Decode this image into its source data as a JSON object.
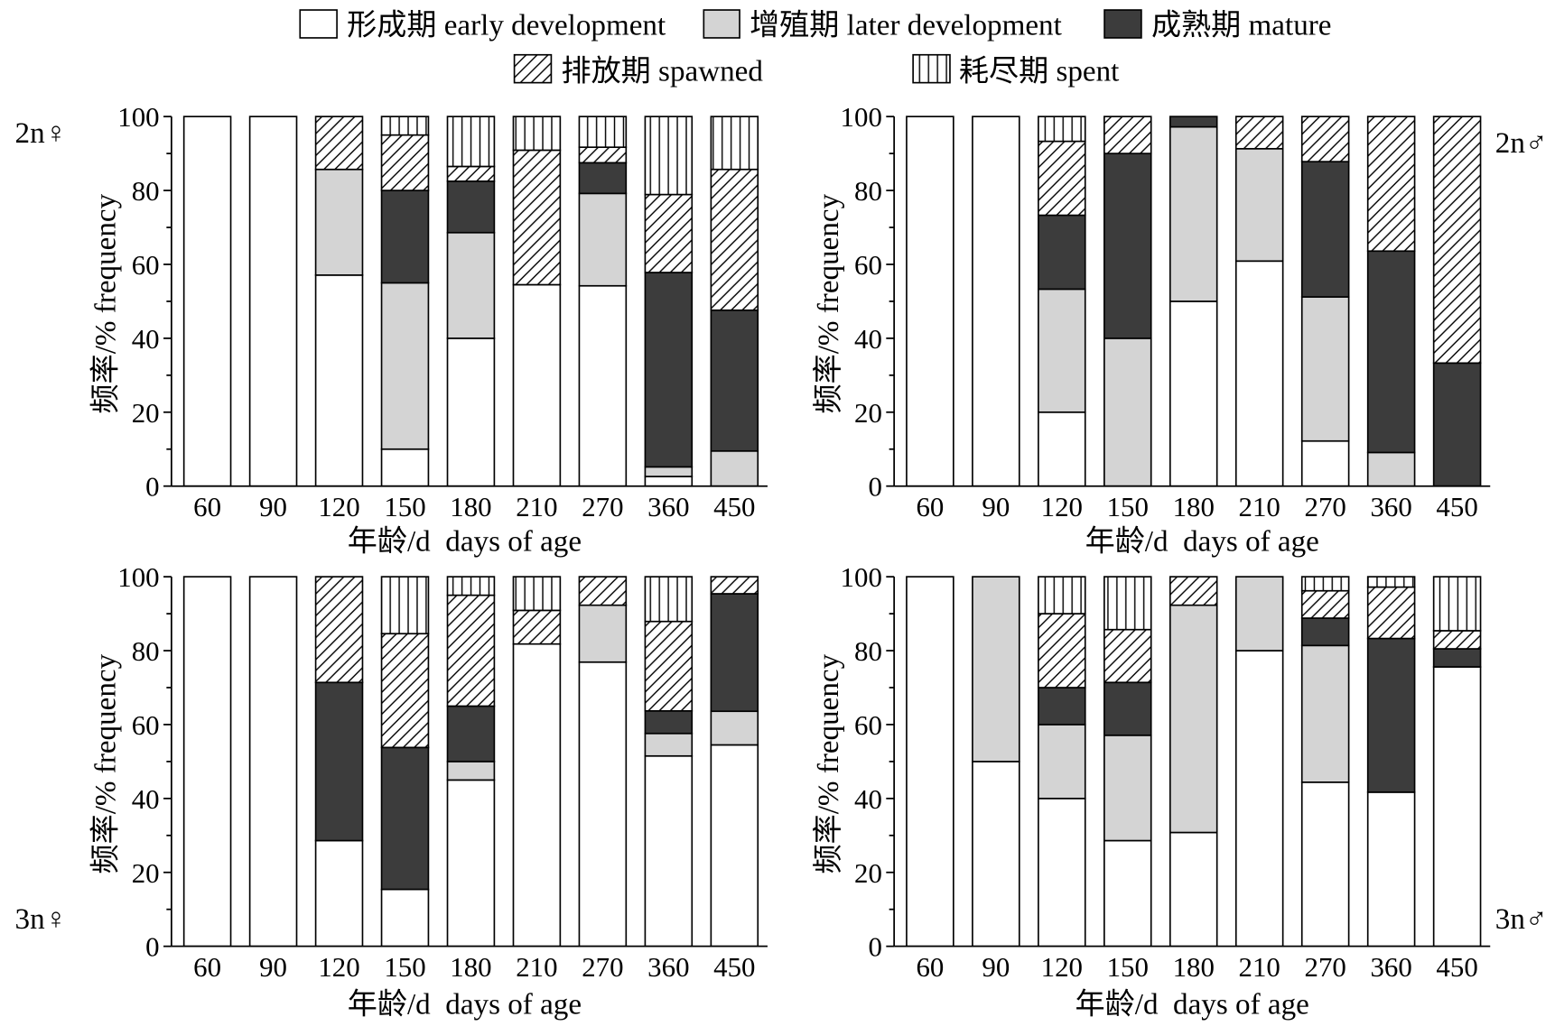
{
  "legend": {
    "position": "top",
    "items": [
      {
        "name": "形成期 early development",
        "fill": "#ffffff"
      },
      {
        "name": "增殖期 later development",
        "fill": "#d4d4d4"
      },
      {
        "name": "成熟期 mature",
        "fill": "#3c3c3c"
      },
      {
        "name": "排放期 spawned",
        "fill": "#ffffff",
        "pattern": "diagonal-hatch"
      },
      {
        "name": "耗尽期 spent",
        "fill": "#ffffff",
        "pattern": "vertical-lines"
      }
    ]
  },
  "chart_data": [
    {
      "type": "bar",
      "stacked": true,
      "grid": false,
      "panel_label": "2n♀",
      "xlabel": "年龄/d  days of age",
      "ylabel": "频率/% frequency",
      "ylim": [
        0,
        100
      ],
      "yticks": [
        0,
        20,
        40,
        60,
        80,
        100
      ],
      "categories": [
        "60",
        "90",
        "120",
        "150",
        "180",
        "210",
        "270",
        "360",
        "450"
      ],
      "series": [
        {
          "values": [
            100,
            100,
            57.1,
            10,
            40,
            54.5,
            54.2,
            2.6,
            0
          ]
        },
        {
          "values": [
            0,
            0,
            28.6,
            45,
            28.6,
            0,
            25,
            2.6,
            9.5
          ]
        },
        {
          "values": [
            0,
            0,
            0,
            25,
            13.9,
            0,
            8.3,
            52.6,
            38.1
          ]
        },
        {
          "values": [
            0,
            0,
            14.3,
            15,
            4.0,
            36.4,
            4.2,
            21.1,
            38.1
          ]
        },
        {
          "values": [
            0,
            0,
            0,
            5,
            13.5,
            9.1,
            8.3,
            21.1,
            14.3
          ]
        }
      ]
    },
    {
      "type": "bar",
      "stacked": true,
      "grid": false,
      "panel_label": "2n♂",
      "xlabel": "年龄/d  days of age",
      "ylabel": "频率/% frequency",
      "ylim": [
        0,
        100
      ],
      "yticks": [
        0,
        20,
        40,
        60,
        80,
        100
      ],
      "categories": [
        "60",
        "90",
        "120",
        "150",
        "180",
        "210",
        "270",
        "360",
        "450"
      ],
      "series": [
        {
          "values": [
            100,
            100,
            20,
            0,
            50,
            60.9,
            12.2,
            0,
            0
          ]
        },
        {
          "values": [
            0,
            0,
            33.3,
            40,
            47.2,
            30.4,
            39.0,
            9.1,
            0
          ]
        },
        {
          "values": [
            0,
            0,
            20,
            50,
            2.8,
            0,
            36.6,
            54.5,
            33.3
          ]
        },
        {
          "values": [
            0,
            0,
            20,
            10,
            0,
            8.7,
            12.2,
            36.4,
            66.7
          ]
        },
        {
          "values": [
            0,
            0,
            6.7,
            0,
            0,
            0,
            0,
            0,
            0
          ]
        }
      ]
    },
    {
      "type": "bar",
      "stacked": true,
      "grid": false,
      "panel_label": "3n♀",
      "xlabel": "年龄/d  days of age",
      "ylabel": "频率/% frequency",
      "ylim": [
        0,
        100
      ],
      "yticks": [
        0,
        20,
        40,
        60,
        80,
        100
      ],
      "categories": [
        "60",
        "90",
        "120",
        "150",
        "180",
        "210",
        "270",
        "360",
        "450"
      ],
      "series": [
        {
          "values": [
            100,
            100,
            28.6,
            15.4,
            45,
            81.8,
            76.9,
            51.5,
            54.5
          ]
        },
        {
          "values": [
            0,
            0,
            0,
            0,
            5,
            0,
            15.4,
            6.1,
            9.1
          ]
        },
        {
          "values": [
            0,
            0,
            42.8,
            38.4,
            15,
            0,
            0,
            6.1,
            31.8
          ]
        },
        {
          "values": [
            0,
            0,
            28.6,
            30.8,
            30,
            9.1,
            7.7,
            24.2,
            4.6
          ]
        },
        {
          "values": [
            0,
            0,
            0,
            15.4,
            5,
            9.1,
            0,
            12.1,
            0
          ]
        }
      ]
    },
    {
      "type": "bar",
      "stacked": true,
      "grid": false,
      "panel_label": "3n♂",
      "xlabel": "年龄/d  days of age",
      "ylabel": "频率/% frequency",
      "ylim": [
        0,
        100
      ],
      "yticks": [
        0,
        20,
        40,
        60,
        80,
        100
      ],
      "categories": [
        "60",
        "90",
        "120",
        "150",
        "180",
        "210",
        "270",
        "360",
        "450"
      ],
      "series": [
        {
          "values": [
            100,
            50,
            40,
            28.6,
            30.8,
            80,
            44.4,
            41.7,
            75.6
          ]
        },
        {
          "values": [
            0,
            50,
            20,
            28.5,
            61.5,
            20,
            37.0,
            0,
            0
          ]
        },
        {
          "values": [
            0,
            0,
            10,
            14.3,
            0,
            0,
            7.4,
            41.6,
            4.9
          ]
        },
        {
          "values": [
            0,
            0,
            20,
            14.3,
            7.7,
            0,
            7.4,
            13.9,
            4.9
          ]
        },
        {
          "values": [
            0,
            0,
            10,
            14.3,
            0,
            0,
            3.8,
            2.8,
            14.6
          ]
        }
      ]
    }
  ]
}
